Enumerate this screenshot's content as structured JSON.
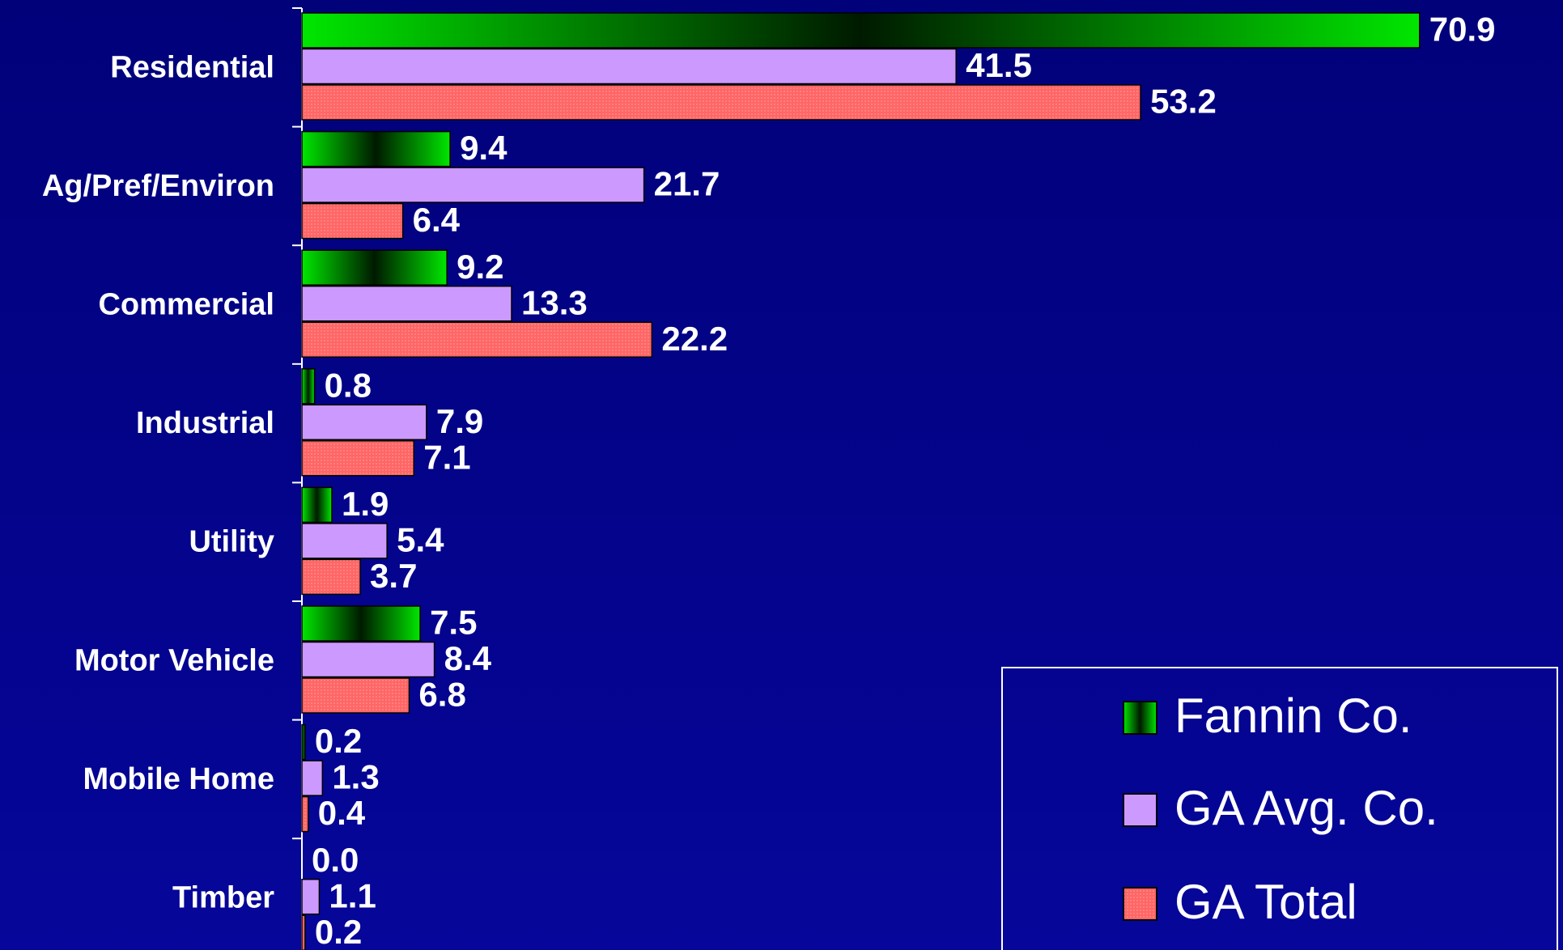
{
  "chart_data": {
    "type": "barh",
    "categories": [
      "Residential",
      "Ag/Pref/Environ",
      "Commercial",
      "Industrial",
      "Utility",
      "Motor Vehicle",
      "Mobile Home",
      "Timber"
    ],
    "series": [
      {
        "name": "Fannin Co.",
        "color": "#00e600",
        "values": [
          70.9,
          9.4,
          9.2,
          0.8,
          1.9,
          7.5,
          0.2,
          0.0
        ],
        "value_labels": [
          "70.9",
          "9.4",
          "9.2",
          "0.8",
          "1.9",
          "7.5",
          "0.2",
          "0.0"
        ]
      },
      {
        "name": "GA Avg. Co.",
        "color": "#cc99ff",
        "values": [
          41.5,
          21.7,
          13.3,
          7.9,
          5.4,
          8.4,
          1.3,
          1.1
        ],
        "value_labels": [
          "41.5",
          "21.7",
          "13.3",
          "7.9",
          "5.4",
          "8.4",
          "1.3",
          "1.1"
        ]
      },
      {
        "name": "GA Total",
        "color": "#ff6666",
        "values": [
          53.2,
          6.4,
          22.2,
          7.1,
          3.7,
          6.8,
          0.4,
          0.2
        ],
        "value_labels": [
          "53.2",
          "6.4",
          "22.2",
          "7.1",
          "3.7",
          "6.8",
          "0.4",
          "0.2"
        ]
      }
    ],
    "xlim": [
      0,
      80
    ],
    "legend": "lower-right"
  }
}
